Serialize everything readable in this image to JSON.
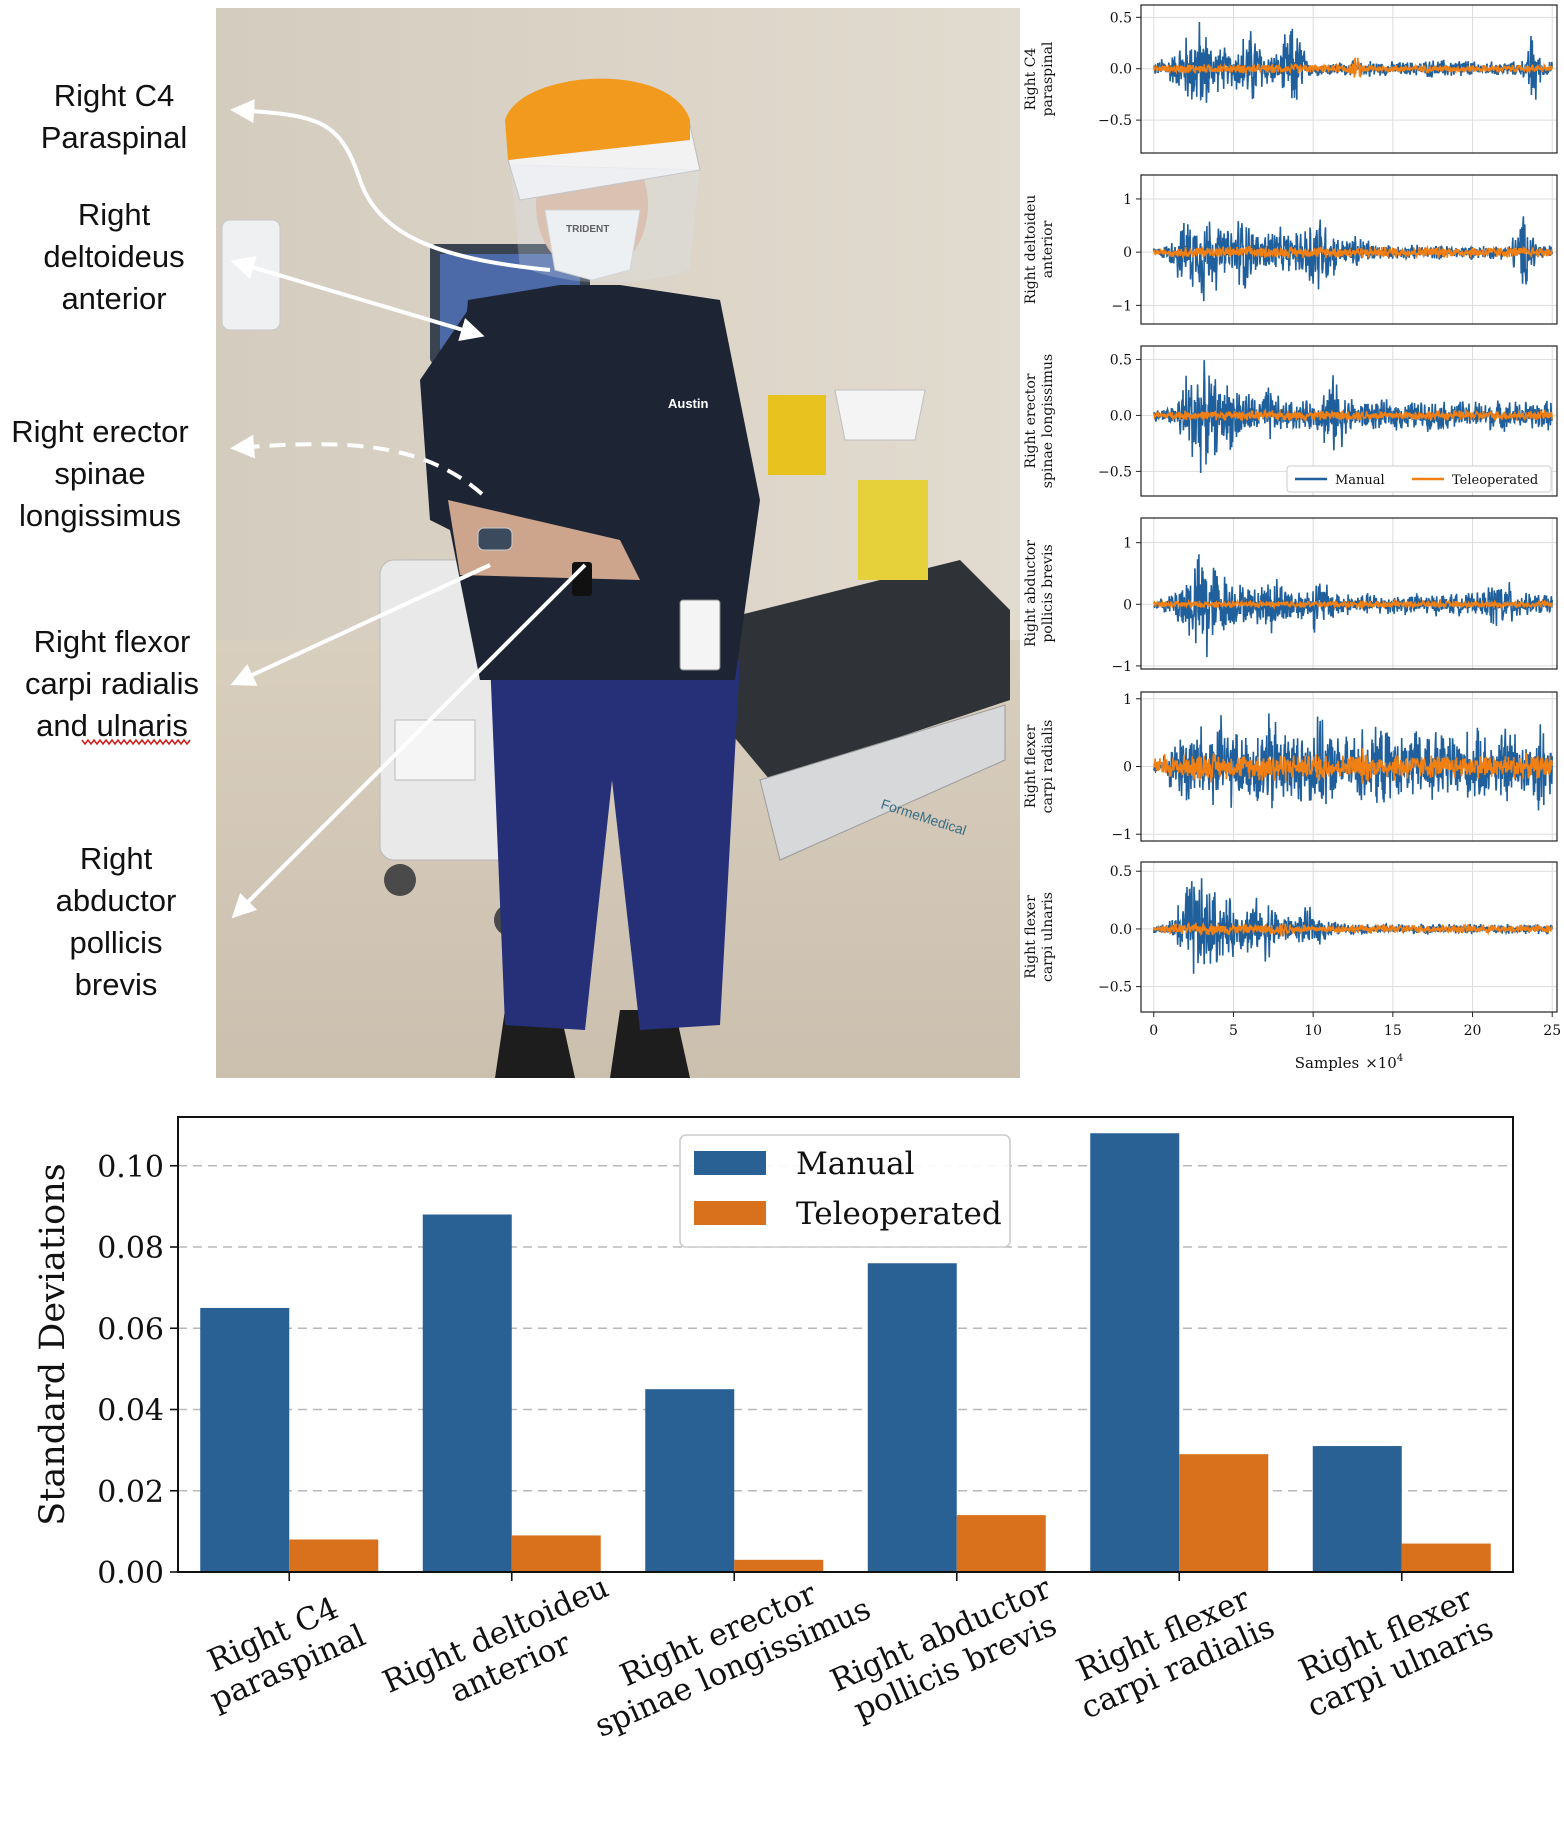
{
  "muscle_labels": [
    [
      "Right C4",
      "Paraspinal"
    ],
    [
      "Right",
      "deltoideus",
      "anterior"
    ],
    [
      "Right erector",
      "spinae",
      "longissimus"
    ],
    [
      "Right flexor",
      "carpi radialis",
      "and ulnaris"
    ],
    [
      "Right",
      "abductor",
      "pollicis",
      "brevis"
    ]
  ],
  "photo": {
    "badge_text": "Austin",
    "mask_text": "TRIDENT",
    "brand_text": "FormeMedical"
  },
  "colors": {
    "manual": "#1f5f9b",
    "teleoperated": "#f07f14",
    "bar_manual": "#2a6194",
    "bar_teleoperated": "#d9701c",
    "arrow": "#ffffff"
  },
  "chart_data": [
    {
      "type": "line",
      "xlabel": "Samples",
      "xlabel_suffix": "×10",
      "xlabel_exp": "4",
      "xlim": [
        -0.8,
        25.3
      ],
      "xticks": [
        0,
        5,
        10,
        15,
        20,
        25
      ],
      "grid": true,
      "legend": {
        "placement": "lower-right",
        "panel": 2,
        "entries": [
          "Manual",
          "Teleoperated"
        ]
      },
      "series_names": [
        "Manual",
        "Teleoperated"
      ],
      "panels": [
        {
          "ylabel": [
            "Right C4",
            "paraspinal"
          ],
          "ylim": [
            -0.82,
            0.62
          ],
          "yticks": [
            0.5,
            0.0,
            -0.5
          ],
          "manual_envelope": [
            0.08,
            0.15,
            0.18,
            0.3,
            0.4,
            0.55,
            0.45,
            0.3,
            0.25,
            0.2,
            0.28,
            0.4,
            0.45,
            0.3,
            0.2,
            0.18,
            0.35,
            0.5,
            0.4,
            0.1,
            0.08,
            0.08,
            0.08,
            0.08,
            0.08,
            0.08,
            0.08,
            0.1,
            0.08,
            0.08,
            0.08,
            0.08,
            0.08,
            0.08,
            0.1,
            0.1,
            0.1,
            0.1,
            0.12,
            0.1,
            0.08,
            0.08,
            0.08,
            0.08,
            0.08,
            0.08,
            0.1,
            0.45,
            0.15,
            0.08
          ],
          "teleoperated_envelope": [
            0.04,
            0.04,
            0.05,
            0.05,
            0.06,
            0.06,
            0.05,
            0.05,
            0.05,
            0.05,
            0.05,
            0.05,
            0.05,
            0.05,
            0.05,
            0.05,
            0.05,
            0.06,
            0.05,
            0.05,
            0.04,
            0.04,
            0.04,
            0.05,
            0.06,
            0.12,
            0.05,
            0.04,
            0.04,
            0.04,
            0.04,
            0.04,
            0.04,
            0.04,
            0.04,
            0.04,
            0.04,
            0.04,
            0.04,
            0.04,
            0.04,
            0.04,
            0.04,
            0.04,
            0.04,
            0.04,
            0.04,
            0.04,
            0.04,
            0.04
          ]
        },
        {
          "ylabel": [
            "Right deltoideu",
            "anterior"
          ],
          "ylim": [
            -1.35,
            1.45
          ],
          "yticks": [
            1,
            0,
            -1
          ],
          "manual_envelope": [
            0.1,
            0.15,
            0.3,
            0.6,
            0.8,
            0.7,
            1.2,
            0.8,
            0.6,
            0.5,
            0.8,
            0.9,
            0.5,
            0.4,
            0.6,
            0.5,
            0.45,
            0.4,
            0.5,
            0.8,
            1.0,
            0.7,
            0.5,
            0.3,
            0.3,
            0.4,
            0.3,
            0.2,
            0.15,
            0.15,
            0.15,
            0.15,
            0.15,
            0.15,
            0.15,
            0.15,
            0.15,
            0.15,
            0.15,
            0.15,
            0.15,
            0.15,
            0.15,
            0.15,
            0.15,
            0.4,
            0.8,
            0.5,
            0.2,
            0.15
          ],
          "teleoperated_envelope": [
            0.06,
            0.06,
            0.1,
            0.12,
            0.12,
            0.12,
            0.12,
            0.12,
            0.12,
            0.12,
            0.12,
            0.12,
            0.12,
            0.12,
            0.12,
            0.12,
            0.12,
            0.12,
            0.12,
            0.12,
            0.12,
            0.12,
            0.12,
            0.12,
            0.12,
            0.12,
            0.12,
            0.12,
            0.12,
            0.12,
            0.12,
            0.12,
            0.12,
            0.12,
            0.12,
            0.12,
            0.12,
            0.12,
            0.12,
            0.12,
            0.12,
            0.12,
            0.12,
            0.12,
            0.12,
            0.12,
            0.12,
            0.12,
            0.12,
            0.12
          ]
        },
        {
          "ylabel": [
            "Right erector",
            "spinae longissimus"
          ],
          "ylim": [
            -0.72,
            0.62
          ],
          "yticks": [
            0.5,
            0.0,
            -0.5
          ],
          "manual_envelope": [
            0.06,
            0.08,
            0.1,
            0.3,
            0.5,
            0.55,
            0.5,
            0.4,
            0.3,
            0.35,
            0.3,
            0.25,
            0.2,
            0.2,
            0.3,
            0.2,
            0.15,
            0.15,
            0.15,
            0.15,
            0.15,
            0.3,
            0.4,
            0.3,
            0.2,
            0.15,
            0.15,
            0.15,
            0.15,
            0.15,
            0.15,
            0.15,
            0.15,
            0.15,
            0.15,
            0.15,
            0.15,
            0.15,
            0.15,
            0.15,
            0.15,
            0.15,
            0.15,
            0.15,
            0.15,
            0.15,
            0.15,
            0.15,
            0.15,
            0.15
          ],
          "teleoperated_envelope": [
            0.03,
            0.03,
            0.04,
            0.05,
            0.05,
            0.05,
            0.05,
            0.05,
            0.05,
            0.05,
            0.05,
            0.05,
            0.05,
            0.05,
            0.05,
            0.05,
            0.05,
            0.05,
            0.05,
            0.05,
            0.05,
            0.05,
            0.05,
            0.05,
            0.05,
            0.05,
            0.05,
            0.05,
            0.05,
            0.05,
            0.05,
            0.05,
            0.05,
            0.05,
            0.05,
            0.05,
            0.05,
            0.05,
            0.05,
            0.05,
            0.05,
            0.05,
            0.05,
            0.05,
            0.05,
            0.05,
            0.05,
            0.05,
            0.05,
            0.05
          ]
        },
        {
          "ylabel": [
            "Right abductor",
            "pollicis brevis"
          ],
          "ylim": [
            -1.05,
            1.4
          ],
          "yticks": [
            1,
            0,
            -1
          ],
          "manual_envelope": [
            0.1,
            0.15,
            0.3,
            0.5,
            0.7,
            0.9,
            1.2,
            0.8,
            0.6,
            0.5,
            0.4,
            0.35,
            0.3,
            0.4,
            0.6,
            0.5,
            0.4,
            0.35,
            0.3,
            0.3,
            0.5,
            0.4,
            0.3,
            0.25,
            0.2,
            0.2,
            0.2,
            0.2,
            0.2,
            0.2,
            0.2,
            0.2,
            0.2,
            0.2,
            0.2,
            0.2,
            0.2,
            0.2,
            0.2,
            0.2,
            0.2,
            0.25,
            0.4,
            0.5,
            0.4,
            0.3,
            0.2,
            0.2,
            0.2,
            0.2
          ],
          "teleoperated_envelope": [
            0.05,
            0.05,
            0.06,
            0.06,
            0.06,
            0.06,
            0.06,
            0.06,
            0.06,
            0.06,
            0.06,
            0.06,
            0.06,
            0.06,
            0.06,
            0.06,
            0.06,
            0.06,
            0.06,
            0.06,
            0.06,
            0.06,
            0.06,
            0.06,
            0.06,
            0.06,
            0.06,
            0.06,
            0.06,
            0.06,
            0.06,
            0.06,
            0.06,
            0.06,
            0.06,
            0.06,
            0.06,
            0.06,
            0.06,
            0.06,
            0.06,
            0.06,
            0.06,
            0.06,
            0.06,
            0.06,
            0.06,
            0.06,
            0.06,
            0.06
          ]
        },
        {
          "ylabel": [
            "Right flexer",
            "carpi radialis"
          ],
          "ylim": [
            -1.1,
            1.1
          ],
          "yticks": [
            1,
            0,
            -1
          ],
          "manual_envelope": [
            0.1,
            0.2,
            0.4,
            0.6,
            0.8,
            0.7,
            0.6,
            0.9,
            0.8,
            0.7,
            0.6,
            0.5,
            0.6,
            0.8,
            0.9,
            0.8,
            0.7,
            0.6,
            0.6,
            0.7,
            0.8,
            0.7,
            0.6,
            0.5,
            0.5,
            0.6,
            0.7,
            0.6,
            0.7,
            0.6,
            0.5,
            0.5,
            0.6,
            0.6,
            0.7,
            0.6,
            0.6,
            0.7,
            0.6,
            0.6,
            0.6,
            0.6,
            0.5,
            0.6,
            0.7,
            0.6,
            0.5,
            0.5,
            0.9,
            0.5
          ],
          "teleoperated_envelope": [
            0.15,
            0.25,
            0.2,
            0.2,
            0.2,
            0.25,
            0.25,
            0.25,
            0.2,
            0.2,
            0.2,
            0.2,
            0.2,
            0.25,
            0.3,
            0.3,
            0.25,
            0.2,
            0.2,
            0.2,
            0.25,
            0.3,
            0.2,
            0.2,
            0.2,
            0.25,
            0.3,
            0.2,
            0.2,
            0.2,
            0.25,
            0.25,
            0.2,
            0.2,
            0.2,
            0.2,
            0.2,
            0.2,
            0.2,
            0.2,
            0.2,
            0.25,
            0.2,
            0.2,
            0.2,
            0.25,
            0.2,
            0.2,
            0.2,
            0.2
          ]
        },
        {
          "ylabel": [
            "Right flexer",
            "carpi ulnaris"
          ],
          "ylim": [
            -0.72,
            0.58
          ],
          "yticks": [
            0.5,
            0.0,
            -0.5
          ],
          "manual_envelope": [
            0.04,
            0.06,
            0.1,
            0.3,
            0.5,
            0.55,
            0.5,
            0.4,
            0.3,
            0.3,
            0.2,
            0.25,
            0.3,
            0.2,
            0.3,
            0.2,
            0.15,
            0.1,
            0.15,
            0.2,
            0.15,
            0.12,
            0.08,
            0.06,
            0.05,
            0.05,
            0.05,
            0.05,
            0.05,
            0.05,
            0.05,
            0.05,
            0.05,
            0.05,
            0.05,
            0.05,
            0.05,
            0.05,
            0.05,
            0.05,
            0.05,
            0.05,
            0.05,
            0.05,
            0.05,
            0.05,
            0.05,
            0.05,
            0.05,
            0.05
          ],
          "teleoperated_envelope": [
            0.03,
            0.04,
            0.05,
            0.05,
            0.05,
            0.06,
            0.06,
            0.06,
            0.05,
            0.06,
            0.05,
            0.05,
            0.05,
            0.05,
            0.05,
            0.06,
            0.07,
            0.05,
            0.05,
            0.04,
            0.04,
            0.04,
            0.04,
            0.04,
            0.04,
            0.04,
            0.04,
            0.04,
            0.04,
            0.04,
            0.04,
            0.04,
            0.04,
            0.04,
            0.04,
            0.04,
            0.04,
            0.04,
            0.04,
            0.04,
            0.04,
            0.04,
            0.04,
            0.04,
            0.04,
            0.04,
            0.04,
            0.04,
            0.04,
            0.04
          ]
        }
      ]
    },
    {
      "type": "bar",
      "ylabel": "Standard Deviations",
      "ylim": [
        0,
        0.112
      ],
      "yticks": [
        0.0,
        0.02,
        0.04,
        0.06,
        0.08,
        0.1
      ],
      "grid": "horizontal-dashed",
      "legend": {
        "placement": "top-center"
      },
      "categories": [
        [
          "Right C4",
          "paraspinal"
        ],
        [
          "Right deltoideu",
          "anterior"
        ],
        [
          "Right erector",
          "spinae longissimus"
        ],
        [
          "Right abductor",
          "pollicis brevis"
        ],
        [
          "Right flexer",
          "carpi radialis"
        ],
        [
          "Right flexer",
          "carpi ulnaris"
        ]
      ],
      "series": [
        {
          "name": "Manual",
          "values": [
            0.065,
            0.088,
            0.045,
            0.076,
            0.108,
            0.031
          ]
        },
        {
          "name": "Teleoperated",
          "values": [
            0.008,
            0.009,
            0.003,
            0.014,
            0.029,
            0.007
          ]
        }
      ]
    }
  ]
}
